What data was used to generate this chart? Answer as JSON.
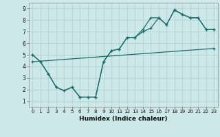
{
  "xlabel": "Humidex (Indice chaleur)",
  "bg_color": "#cde8e8",
  "grid_color": "#b8d4d4",
  "line_color": "#1a6b6b",
  "xlim": [
    -0.5,
    23.5
  ],
  "ylim": [
    0.5,
    9.5
  ],
  "xticks": [
    0,
    1,
    2,
    3,
    4,
    5,
    6,
    7,
    8,
    9,
    10,
    11,
    12,
    13,
    14,
    15,
    16,
    17,
    18,
    19,
    20,
    21,
    22,
    23
  ],
  "yticks": [
    1,
    2,
    3,
    4,
    5,
    6,
    7,
    8,
    9
  ],
  "line1_x": [
    0,
    1,
    2,
    3,
    4,
    5,
    6,
    7,
    8,
    9,
    10,
    11,
    12,
    13,
    14,
    15,
    16,
    17,
    18,
    19,
    20,
    21,
    22,
    23
  ],
  "line1_y": [
    5.0,
    4.4,
    3.35,
    2.2,
    1.9,
    2.2,
    1.35,
    1.35,
    1.35,
    4.4,
    5.35,
    5.5,
    6.5,
    6.5,
    7.0,
    7.3,
    8.2,
    7.6,
    8.9,
    8.5,
    8.2,
    8.2,
    7.2,
    7.2
  ],
  "line2_x": [
    0,
    1,
    2,
    3,
    4,
    5,
    6,
    7,
    8,
    9,
    10,
    11,
    12,
    13,
    14,
    15,
    16,
    17,
    18,
    19,
    20,
    21,
    22,
    23
  ],
  "line2_y": [
    5.0,
    4.4,
    3.35,
    2.2,
    1.9,
    2.2,
    1.35,
    1.35,
    1.35,
    4.4,
    5.35,
    5.5,
    6.5,
    6.5,
    7.2,
    8.2,
    8.2,
    7.6,
    8.85,
    8.5,
    8.2,
    8.2,
    7.2,
    7.2
  ],
  "line3_x": [
    0,
    23
  ],
  "line3_y": [
    4.4,
    5.55
  ]
}
